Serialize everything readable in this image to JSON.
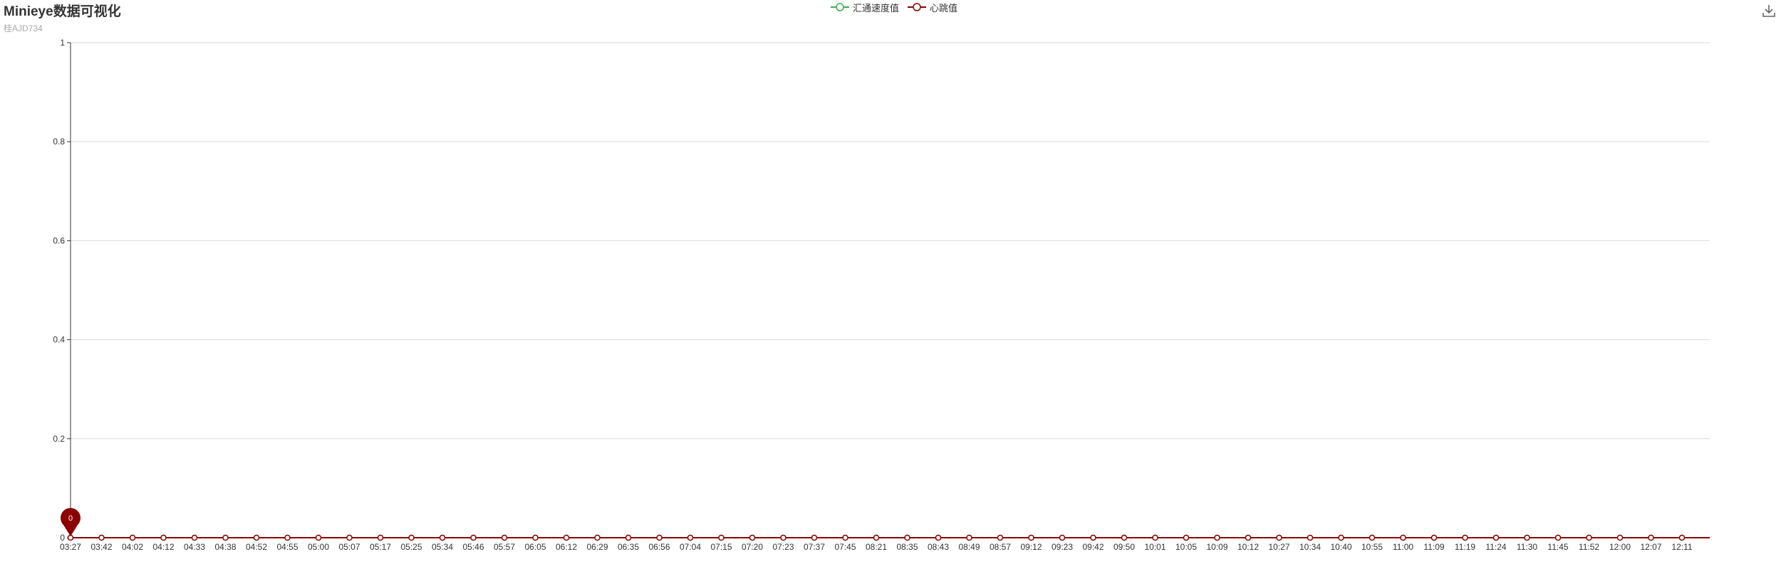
{
  "header": {
    "title": "Minieye数据可视化",
    "subtitle": "桂AJD734"
  },
  "toolbar": {
    "download_icon": "download-icon"
  },
  "colors": {
    "speed": "#3daa4c",
    "heartbeat": "#8b0000",
    "grid": "#d9d9d9",
    "axis": "#333333"
  },
  "chart_data": {
    "type": "line",
    "title": "Minieye数据可视化",
    "subtitle": "桂AJD734",
    "legend_position": "top-center",
    "grid": true,
    "ylim": [
      0,
      1
    ],
    "yticks": [
      "0",
      "0.2",
      "0.4",
      "0.6",
      "0.8",
      "1"
    ],
    "categories": [
      "03:27",
      "03:42",
      "04:02",
      "04:12",
      "04:33",
      "04:38",
      "04:52",
      "04:55",
      "05:00",
      "05:07",
      "05:17",
      "05:25",
      "05:34",
      "05:46",
      "05:57",
      "06:05",
      "06:12",
      "06:29",
      "06:35",
      "06:56",
      "07:04",
      "07:15",
      "07:20",
      "07:23",
      "07:37",
      "07:45",
      "08:21",
      "08:35",
      "08:43",
      "08:49",
      "08:57",
      "09:12",
      "09:23",
      "09:42",
      "09:50",
      "10:01",
      "10:05",
      "10:09",
      "10:12",
      "10:27",
      "10:34",
      "10:40",
      "10:55",
      "11:00",
      "11:09",
      "11:19",
      "11:24",
      "11:30",
      "11:45",
      "11:52",
      "12:00",
      "12:07",
      "12:11"
    ],
    "series": [
      {
        "name": "汇通速度值",
        "values": [
          0,
          0,
          0,
          0,
          0,
          0,
          0,
          0,
          0,
          0,
          0,
          0,
          0,
          0,
          0,
          0,
          0,
          0,
          0,
          0,
          0,
          0,
          0,
          0,
          0,
          0,
          0,
          0,
          0,
          0,
          0,
          0,
          0,
          0,
          0,
          0,
          0,
          0,
          0,
          0,
          0,
          0,
          0,
          0,
          0,
          0,
          0,
          0,
          0,
          0,
          0,
          0,
          0
        ]
      },
      {
        "name": "心跳值",
        "values": [
          0,
          0,
          0,
          0,
          0,
          0,
          0,
          0,
          0,
          0,
          0,
          0,
          0,
          0,
          0,
          0,
          0,
          0,
          0,
          0,
          0,
          0,
          0,
          0,
          0,
          0,
          0,
          0,
          0,
          0,
          0,
          0,
          0,
          0,
          0,
          0,
          0,
          0,
          0,
          0,
          0,
          0,
          0,
          0,
          0,
          0,
          0,
          0,
          0,
          0,
          0,
          0,
          0
        ]
      }
    ],
    "markpoint": {
      "series": "心跳值",
      "category": "03:27",
      "value": 0,
      "label": "0"
    }
  }
}
